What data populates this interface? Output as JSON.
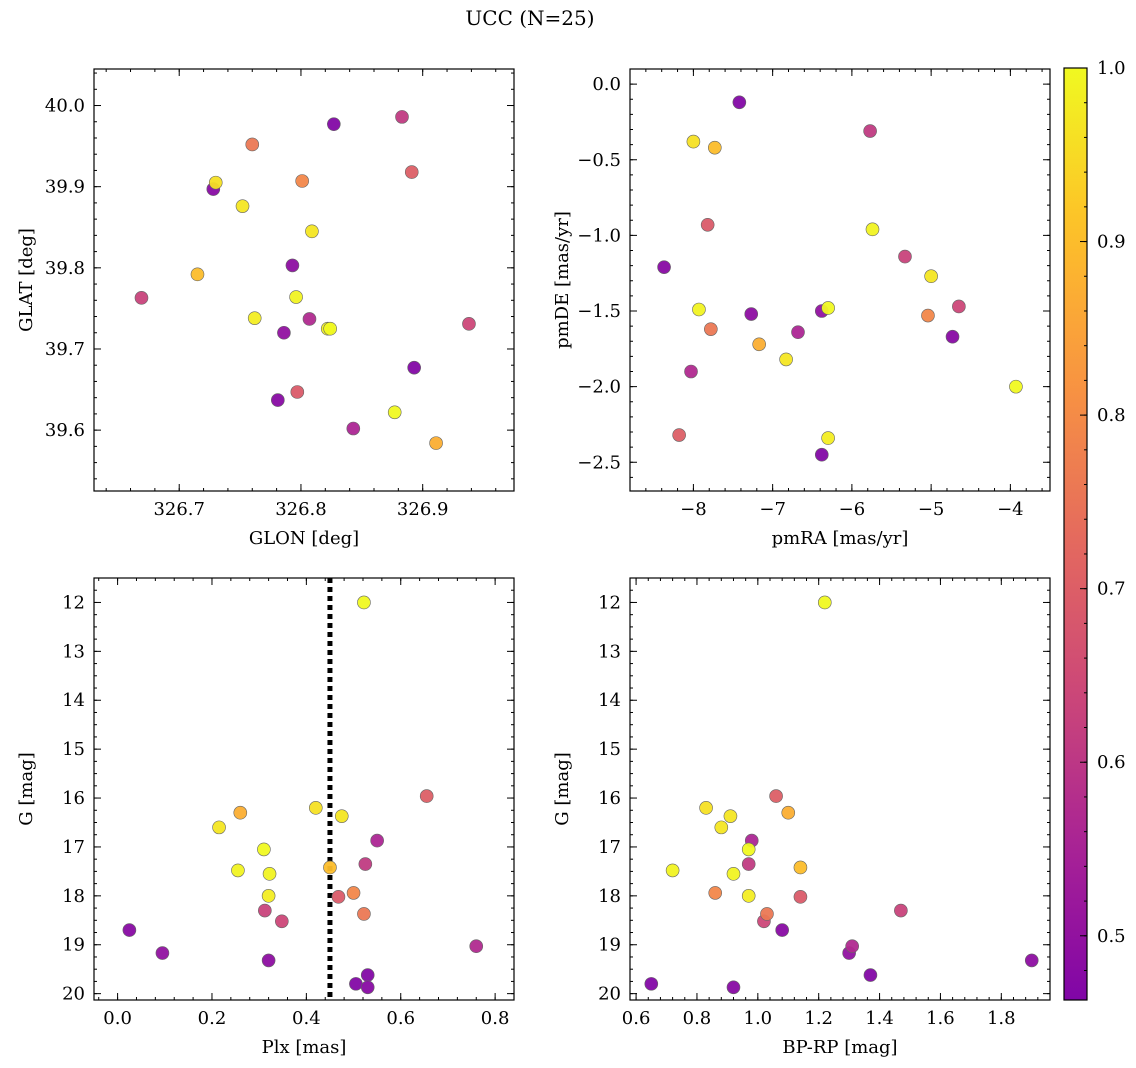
{
  "title": "UCC (N=25)",
  "colors": {
    "points": "viridis-like plasma",
    "edge": "#555555",
    "axis": "#000000"
  },
  "chart_data": [
    {
      "type": "scatter",
      "xlabel": "GLON [deg]",
      "ylabel": "GLAT [deg]",
      "xlim": [
        326.63,
        326.975
      ],
      "ylim": [
        39.525,
        40.045
      ],
      "xticks": [
        326.7,
        326.8,
        326.9
      ],
      "yticks": [
        39.6,
        39.7,
        39.8,
        39.9,
        40.0
      ],
      "xticklabels": [
        "326.7",
        "326.8",
        "326.9"
      ],
      "yticklabels": [
        "39.6",
        "39.7",
        "39.8",
        "39.9",
        "40.0"
      ],
      "invert_y": false
    },
    {
      "type": "scatter",
      "xlabel": "pmRA [mas/yr]",
      "ylabel": "pmDE [mas/yr]",
      "xlim": [
        -8.8,
        -3.5
      ],
      "ylim": [
        -2.69,
        0.1
      ],
      "xticks": [
        -8,
        -7,
        -6,
        -5,
        -4
      ],
      "yticks": [
        -2.5,
        -2.0,
        -1.5,
        -1.0,
        -0.5,
        0.0
      ],
      "xticklabels": [
        "−8",
        "−7",
        "−6",
        "−5",
        "−4"
      ],
      "yticklabels": [
        "−2.5",
        "−2.0",
        "−1.5",
        "−1.0",
        "−0.5",
        "0.0"
      ],
      "invert_y": false
    },
    {
      "type": "scatter",
      "xlabel": "Plx [mas]",
      "ylabel": "G [mag]",
      "xlim": [
        -0.05,
        0.84
      ],
      "ylim": [
        11.5,
        20.13
      ],
      "xticks": [
        0.0,
        0.2,
        0.4,
        0.6,
        0.8
      ],
      "yticks": [
        12,
        13,
        14,
        15,
        16,
        17,
        18,
        19,
        20
      ],
      "xticklabels": [
        "0.0",
        "0.2",
        "0.4",
        "0.6",
        "0.8"
      ],
      "yticklabels": [
        "12",
        "13",
        "14",
        "15",
        "16",
        "17",
        "18",
        "19",
        "20"
      ],
      "invert_y": true,
      "vline": 0.45
    },
    {
      "type": "scatter",
      "xlabel": "BP-RP [mag]",
      "ylabel": "G [mag]",
      "xlim": [
        0.58,
        1.96
      ],
      "ylim": [
        11.5,
        20.13
      ],
      "xticks": [
        0.6,
        0.8,
        1.0,
        1.2,
        1.4,
        1.6,
        1.8
      ],
      "yticks": [
        12,
        13,
        14,
        15,
        16,
        17,
        18,
        19,
        20
      ],
      "xticklabels": [
        "0.6",
        "0.8",
        "1.0",
        "1.2",
        "1.4",
        "1.6",
        "1.8"
      ],
      "yticklabels": [
        "12",
        "13",
        "14",
        "15",
        "16",
        "17",
        "18",
        "19",
        "20"
      ],
      "invert_y": true
    }
  ],
  "colorbar": {
    "range": [
      0.463,
      1.0
    ],
    "ticks": [
      0.5,
      0.6,
      0.7,
      0.8,
      0.9,
      1.0
    ],
    "ticklabels": [
      "0.5",
      "0.6",
      "0.7",
      "0.8",
      "0.9",
      "1.0"
    ]
  },
  "stars": [
    {
      "glon": 326.827,
      "glat": 39.977,
      "pmra": -7.42,
      "pmde": -0.12,
      "plx": 0.53,
      "g": 19.62,
      "bprp": 1.37,
      "p": 0.47
    },
    {
      "glon": 326.728,
      "glat": 39.897,
      "pmra": -8.37,
      "pmde": -1.21,
      "plx": 0.025,
      "g": 18.7,
      "bprp": 1.08,
      "p": 0.48
    },
    {
      "glon": 326.793,
      "glat": 39.803,
      "pmra": -7.27,
      "pmde": -1.52,
      "plx": 0.32,
      "g": 19.32,
      "bprp": 1.9,
      "p": 0.49
    },
    {
      "glon": 326.786,
      "glat": 39.72,
      "pmra": -6.38,
      "pmde": -1.5,
      "plx": 0.095,
      "g": 19.17,
      "bprp": 1.3,
      "p": 0.5
    },
    {
      "glon": 326.893,
      "glat": 39.677,
      "pmra": -6.38,
      "pmde": -2.45,
      "plx": 0.505,
      "g": 19.8,
      "bprp": 0.65,
      "p": 0.47
    },
    {
      "glon": 326.781,
      "glat": 39.637,
      "pmra": -4.73,
      "pmde": -1.67,
      "plx": 0.53,
      "g": 19.87,
      "bprp": 0.92,
      "p": 0.48
    },
    {
      "glon": 326.883,
      "glat": 39.986,
      "pmra": -5.77,
      "pmde": -0.31,
      "plx": 0.525,
      "g": 17.35,
      "bprp": 0.97,
      "p": 0.61
    },
    {
      "glon": 326.807,
      "glat": 39.737,
      "pmra": -8.03,
      "pmde": -1.9,
      "plx": 0.76,
      "g": 19.03,
      "bprp": 1.31,
      "p": 0.57
    },
    {
      "glon": 326.843,
      "glat": 39.602,
      "pmra": -6.68,
      "pmde": -1.64,
      "plx": 0.55,
      "g": 16.87,
      "bprp": 0.98,
      "p": 0.56
    },
    {
      "glon": 326.669,
      "glat": 39.763,
      "pmra": -5.33,
      "pmde": -1.14,
      "plx": 0.312,
      "g": 18.3,
      "bprp": 1.47,
      "p": 0.63
    },
    {
      "glon": 326.938,
      "glat": 39.731,
      "pmra": -4.65,
      "pmde": -1.47,
      "plx": 0.348,
      "g": 18.52,
      "bprp": 1.02,
      "p": 0.64
    },
    {
      "glon": 326.797,
      "glat": 39.647,
      "pmra": -7.82,
      "pmde": -0.93,
      "plx": 0.468,
      "g": 18.02,
      "bprp": 1.14,
      "p": 0.69
    },
    {
      "glon": 326.891,
      "glat": 39.918,
      "pmra": -8.18,
      "pmde": -2.32,
      "plx": 0.655,
      "g": 15.96,
      "bprp": 1.06,
      "p": 0.7
    },
    {
      "glon": 326.76,
      "glat": 39.952,
      "pmra": -7.78,
      "pmde": -1.62,
      "plx": 0.522,
      "g": 18.37,
      "bprp": 1.03,
      "p": 0.76
    },
    {
      "glon": 326.801,
      "glat": 39.907,
      "pmra": -5.04,
      "pmde": -1.53,
      "plx": 0.5,
      "g": 17.94,
      "bprp": 0.86,
      "p": 0.79
    },
    {
      "glon": 326.911,
      "glat": 39.584,
      "pmra": -7.17,
      "pmde": -1.72,
      "plx": 0.26,
      "g": 16.3,
      "bprp": 1.1,
      "p": 0.87
    },
    {
      "glon": 326.715,
      "glat": 39.792,
      "pmra": -7.73,
      "pmde": -0.42,
      "plx": 0.45,
      "g": 17.42,
      "bprp": 1.14,
      "p": 0.9
    },
    {
      "glon": 326.73,
      "glat": 39.905,
      "pmra": -8.0,
      "pmde": -0.38,
      "plx": 0.42,
      "g": 16.2,
      "bprp": 0.83,
      "p": 0.96
    },
    {
      "glon": 326.752,
      "glat": 39.876,
      "pmra": -6.83,
      "pmde": -1.82,
      "plx": 0.215,
      "g": 16.6,
      "bprp": 0.88,
      "p": 0.97
    },
    {
      "glon": 326.809,
      "glat": 39.845,
      "pmra": -5.0,
      "pmde": -1.27,
      "plx": 0.475,
      "g": 16.37,
      "bprp": 0.91,
      "p": 0.97
    },
    {
      "glon": 326.762,
      "glat": 39.738,
      "pmra": -6.3,
      "pmde": -2.34,
      "plx": 0.32,
      "g": 18.0,
      "bprp": 0.97,
      "p": 0.98
    },
    {
      "glon": 326.796,
      "glat": 39.764,
      "pmra": -7.93,
      "pmde": -1.49,
      "plx": 0.255,
      "g": 17.48,
      "bprp": 0.72,
      "p": 0.99
    },
    {
      "glon": 326.822,
      "glat": 39.725,
      "pmra": -5.74,
      "pmde": -0.96,
      "plx": 0.322,
      "g": 17.55,
      "bprp": 0.92,
      "p": 0.99
    },
    {
      "glon": 326.877,
      "glat": 39.622,
      "pmra": -3.93,
      "pmde": -2.0,
      "plx": 0.31,
      "g": 17.05,
      "bprp": 0.97,
      "p": 1.0
    },
    {
      "glon": 326.824,
      "glat": 39.725,
      "pmra": -6.3,
      "pmde": -1.48,
      "plx": 0.522,
      "g": 12.0,
      "bprp": 1.22,
      "p": 1.0
    }
  ]
}
